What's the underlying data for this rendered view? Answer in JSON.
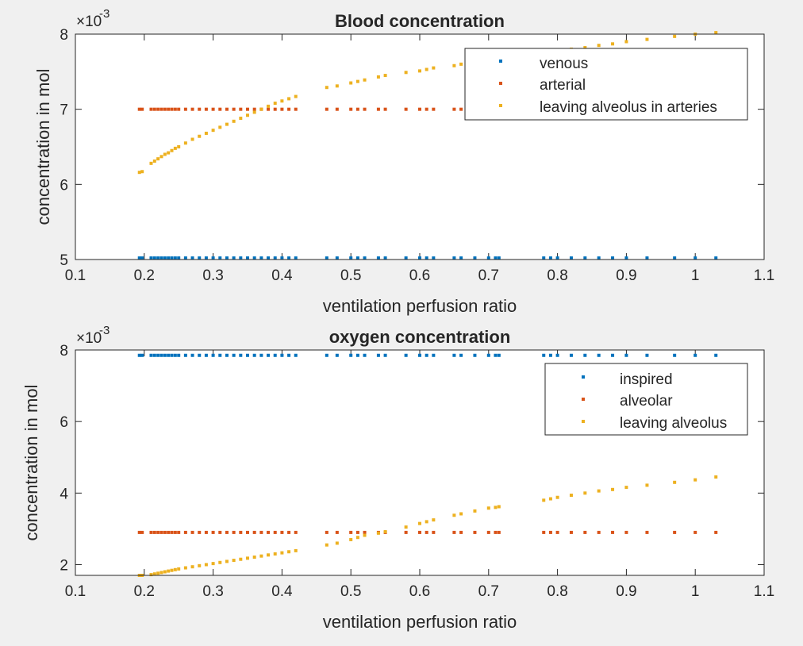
{
  "chart_data": [
    {
      "type": "scatter",
      "title": "Blood concentration",
      "xlabel": "ventilation perfusion ratio",
      "ylabel": "concentration in mol",
      "xlim": [
        0.1,
        1.1
      ],
      "ylim": [
        5,
        8
      ],
      "y_multiplier": "×10",
      "y_exponent": "-3",
      "xticks": [
        "0.1",
        "0.2",
        "0.3",
        "0.4",
        "0.5",
        "0.6",
        "0.7",
        "0.8",
        "0.9",
        "1",
        "1.1"
      ],
      "yticks": [
        "5",
        "6",
        "7",
        "8"
      ],
      "grid": false,
      "legend_position": "top-right",
      "x": [
        0.193,
        0.197,
        0.21,
        0.215,
        0.22,
        0.225,
        0.23,
        0.235,
        0.24,
        0.245,
        0.25,
        0.26,
        0.27,
        0.28,
        0.29,
        0.3,
        0.31,
        0.32,
        0.33,
        0.34,
        0.35,
        0.36,
        0.37,
        0.38,
        0.39,
        0.4,
        0.41,
        0.42,
        0.465,
        0.48,
        0.5,
        0.51,
        0.52,
        0.54,
        0.55,
        0.58,
        0.6,
        0.61,
        0.62,
        0.65,
        0.66,
        0.68,
        0.7,
        0.71,
        0.715,
        0.78,
        0.79,
        0.8,
        0.82,
        0.84,
        0.86,
        0.88,
        0.9,
        0.93,
        0.97,
        1.0,
        1.03
      ],
      "series": [
        {
          "name": "venous",
          "color": "#0072bd",
          "values": [
            5.02,
            5.02,
            5.02,
            5.02,
            5.02,
            5.02,
            5.02,
            5.02,
            5.02,
            5.02,
            5.02,
            5.02,
            5.02,
            5.02,
            5.02,
            5.02,
            5.02,
            5.02,
            5.02,
            5.02,
            5.02,
            5.02,
            5.02,
            5.02,
            5.02,
            5.02,
            5.02,
            5.02,
            5.02,
            5.02,
            5.02,
            5.02,
            5.02,
            5.02,
            5.02,
            5.02,
            5.02,
            5.02,
            5.02,
            5.02,
            5.02,
            5.02,
            5.02,
            5.02,
            5.02,
            5.02,
            5.02,
            5.02,
            5.02,
            5.02,
            5.02,
            5.02,
            5.02,
            5.02,
            5.02,
            5.02,
            5.02
          ]
        },
        {
          "name": "arterial",
          "color": "#d95319",
          "values": [
            7.0,
            7.0,
            7.0,
            7.0,
            7.0,
            7.0,
            7.0,
            7.0,
            7.0,
            7.0,
            7.0,
            7.0,
            7.0,
            7.0,
            7.0,
            7.0,
            7.0,
            7.0,
            7.0,
            7.0,
            7.0,
            7.0,
            7.0,
            7.0,
            7.0,
            7.0,
            7.0,
            7.0,
            7.0,
            7.0,
            7.0,
            7.0,
            7.0,
            7.0,
            7.0,
            7.0,
            7.0,
            7.0,
            7.0,
            7.0,
            7.0,
            7.0,
            7.0,
            7.0,
            7.0,
            7.0,
            7.0,
            7.0,
            7.0,
            7.0,
            7.0,
            7.0,
            7.0,
            7.0,
            7.0,
            7.0,
            7.0
          ]
        },
        {
          "name": "leaving alveolus in arteries",
          "color": "#edb120",
          "values": [
            6.16,
            6.17,
            6.28,
            6.31,
            6.34,
            6.37,
            6.4,
            6.42,
            6.45,
            6.48,
            6.5,
            6.55,
            6.6,
            6.64,
            6.68,
            6.72,
            6.76,
            6.8,
            6.84,
            6.88,
            6.92,
            6.96,
            7.0,
            7.04,
            7.08,
            7.11,
            7.14,
            7.17,
            7.29,
            7.31,
            7.35,
            7.37,
            7.39,
            7.43,
            7.45,
            7.49,
            7.51,
            7.53,
            7.55,
            7.58,
            7.6,
            7.63,
            7.66,
            7.67,
            7.68,
            7.74,
            7.76,
            7.77,
            7.8,
            7.82,
            7.85,
            7.87,
            7.9,
            7.93,
            7.97,
            8.0,
            8.02
          ]
        }
      ]
    },
    {
      "type": "scatter",
      "title": "oxygen concentration",
      "xlabel": "ventilation perfusion ratio",
      "ylabel": "concentration in mol",
      "xlim": [
        0.1,
        1.1
      ],
      "ylim": [
        1.7,
        8
      ],
      "y_multiplier": "×10",
      "y_exponent": "-3",
      "xticks": [
        "0.1",
        "0.2",
        "0.3",
        "0.4",
        "0.5",
        "0.6",
        "0.7",
        "0.8",
        "0.9",
        "1",
        "1.1"
      ],
      "yticks": [
        "2",
        "4",
        "6",
        "8"
      ],
      "grid": false,
      "legend_position": "top-right",
      "x": [
        0.193,
        0.197,
        0.21,
        0.215,
        0.22,
        0.225,
        0.23,
        0.235,
        0.24,
        0.245,
        0.25,
        0.26,
        0.27,
        0.28,
        0.29,
        0.3,
        0.31,
        0.32,
        0.33,
        0.34,
        0.35,
        0.36,
        0.37,
        0.38,
        0.39,
        0.4,
        0.41,
        0.42,
        0.465,
        0.48,
        0.5,
        0.51,
        0.52,
        0.54,
        0.55,
        0.58,
        0.6,
        0.61,
        0.62,
        0.65,
        0.66,
        0.68,
        0.7,
        0.71,
        0.715,
        0.78,
        0.79,
        0.8,
        0.82,
        0.84,
        0.86,
        0.88,
        0.9,
        0.93,
        0.97,
        1.0,
        1.03
      ],
      "series": [
        {
          "name": "inspired",
          "color": "#0072bd",
          "values": [
            7.85,
            7.85,
            7.85,
            7.85,
            7.85,
            7.85,
            7.85,
            7.85,
            7.85,
            7.85,
            7.85,
            7.85,
            7.85,
            7.85,
            7.85,
            7.85,
            7.85,
            7.85,
            7.85,
            7.85,
            7.85,
            7.85,
            7.85,
            7.85,
            7.85,
            7.85,
            7.85,
            7.85,
            7.85,
            7.85,
            7.85,
            7.85,
            7.85,
            7.85,
            7.85,
            7.85,
            7.85,
            7.85,
            7.85,
            7.85,
            7.85,
            7.85,
            7.85,
            7.85,
            7.85,
            7.85,
            7.85,
            7.85,
            7.85,
            7.85,
            7.85,
            7.85,
            7.85,
            7.85,
            7.85,
            7.85,
            7.85
          ]
        },
        {
          "name": "alveolar",
          "color": "#d95319",
          "values": [
            2.9,
            2.9,
            2.9,
            2.9,
            2.9,
            2.9,
            2.9,
            2.9,
            2.9,
            2.9,
            2.9,
            2.9,
            2.9,
            2.9,
            2.9,
            2.9,
            2.9,
            2.9,
            2.9,
            2.9,
            2.9,
            2.9,
            2.9,
            2.9,
            2.9,
            2.9,
            2.9,
            2.9,
            2.9,
            2.9,
            2.9,
            2.9,
            2.9,
            2.9,
            2.9,
            2.9,
            2.9,
            2.9,
            2.9,
            2.9,
            2.9,
            2.9,
            2.9,
            2.9,
            2.9,
            2.9,
            2.9,
            2.9,
            2.9,
            2.9,
            2.9,
            2.9,
            2.9,
            2.9,
            2.9,
            2.9,
            2.9
          ]
        },
        {
          "name": "leaving alveolus",
          "color": "#edb120",
          "values": [
            1.7,
            1.7,
            1.72,
            1.74,
            1.76,
            1.78,
            1.8,
            1.82,
            1.84,
            1.86,
            1.88,
            1.91,
            1.94,
            1.97,
            2.0,
            2.03,
            2.06,
            2.09,
            2.12,
            2.15,
            2.18,
            2.21,
            2.24,
            2.27,
            2.3,
            2.33,
            2.36,
            2.39,
            2.55,
            2.6,
            2.7,
            2.76,
            2.82,
            2.88,
            2.92,
            3.05,
            3.15,
            3.2,
            3.25,
            3.38,
            3.42,
            3.5,
            3.58,
            3.6,
            3.62,
            3.8,
            3.84,
            3.88,
            3.94,
            4.0,
            4.06,
            4.1,
            4.16,
            4.22,
            4.3,
            4.37,
            4.45
          ]
        }
      ]
    }
  ]
}
